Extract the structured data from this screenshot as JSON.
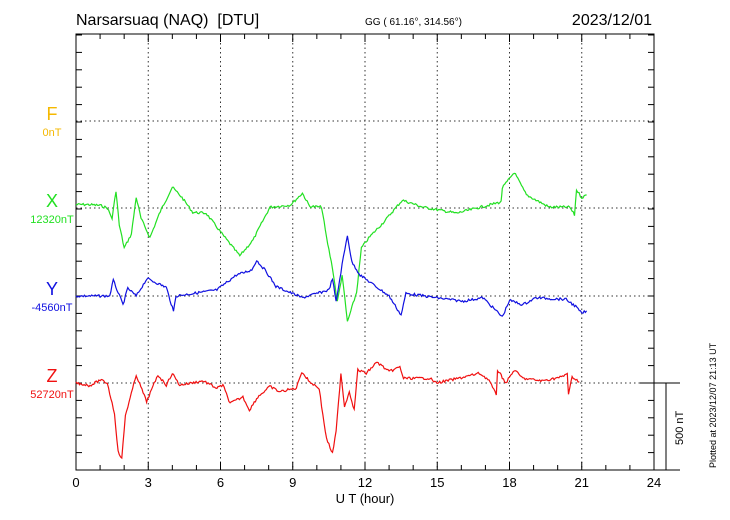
{
  "header": {
    "station": "Narsarsuaq (NAQ)  [DTU]",
    "coords": "GG ( 61.16°, 314.56°)",
    "date": "2023/12/01"
  },
  "footer": {
    "plotted": "Plotted at 2023/12/07 21:13 UT",
    "scale_label": "500 nT"
  },
  "colors": {
    "F": "#f5b800",
    "X": "#22e022",
    "Y": "#1010e0",
    "Z": "#f01010"
  },
  "chart_data": {
    "type": "line",
    "title": "Narsarsuaq (NAQ) [DTU] 2023/12/01",
    "xlabel": "U T (hour)",
    "xlim": [
      0,
      24
    ],
    "xticks": [
      "0",
      "3",
      "6",
      "9",
      "12",
      "15",
      "18",
      "21",
      "24"
    ],
    "grid": true,
    "scale_bar_nT": 500,
    "series": [
      {
        "name": "F",
        "baseline_label": "0nT",
        "points": []
      },
      {
        "name": "X",
        "baseline_label": "12320nT",
        "points": [
          [
            0,
            20
          ],
          [
            0.5,
            20
          ],
          [
            1.0,
            15
          ],
          [
            1.3,
            0
          ],
          [
            1.5,
            -60
          ],
          [
            1.66,
            100
          ],
          [
            1.8,
            -100
          ],
          [
            2.0,
            -230
          ],
          [
            2.3,
            -150
          ],
          [
            2.5,
            63
          ],
          [
            2.7,
            -60
          ],
          [
            3.07,
            -170
          ],
          [
            3.5,
            -20
          ],
          [
            4.0,
            120
          ],
          [
            4.4,
            60
          ],
          [
            4.85,
            -25
          ],
          [
            5.4,
            -30
          ],
          [
            6.1,
            -155
          ],
          [
            6.8,
            -275
          ],
          [
            7.35,
            -185
          ],
          [
            8.05,
            5
          ],
          [
            8.9,
            17
          ],
          [
            9.4,
            85
          ],
          [
            9.7,
            10
          ],
          [
            10.2,
            5
          ],
          [
            10.4,
            -170
          ],
          [
            10.65,
            -345
          ],
          [
            10.85,
            -540
          ],
          [
            11.05,
            -385
          ],
          [
            11.27,
            -655
          ],
          [
            11.65,
            -485
          ],
          [
            11.85,
            -230
          ],
          [
            12.2,
            -165
          ],
          [
            12.75,
            -85
          ],
          [
            13.3,
            5
          ],
          [
            13.55,
            45
          ],
          [
            14.4,
            5
          ],
          [
            15.8,
            -30
          ],
          [
            17.15,
            17
          ],
          [
            17.65,
            35
          ],
          [
            17.7,
            115
          ],
          [
            18.2,
            205
          ],
          [
            18.7,
            75
          ],
          [
            19.65,
            5
          ],
          [
            20.5,
            5
          ],
          [
            20.7,
            -40
          ],
          [
            20.78,
            105
          ],
          [
            21.0,
            60
          ],
          [
            21.2,
            75
          ]
        ]
      },
      {
        "name": "Y",
        "baseline_label": "-4560nT",
        "points": [
          [
            0,
            0
          ],
          [
            1.4,
            0
          ],
          [
            1.55,
            90
          ],
          [
            1.95,
            -50
          ],
          [
            2.15,
            45
          ],
          [
            2.5,
            0
          ],
          [
            2.95,
            100
          ],
          [
            3.75,
            50
          ],
          [
            4.05,
            -90
          ],
          [
            4.15,
            0
          ],
          [
            5.85,
            35
          ],
          [
            6.65,
            120
          ],
          [
            7.3,
            150
          ],
          [
            7.5,
            205
          ],
          [
            7.9,
            140
          ],
          [
            8.3,
            55
          ],
          [
            9.4,
            -10
          ],
          [
            10.5,
            35
          ],
          [
            10.65,
            100
          ],
          [
            10.8,
            -35
          ],
          [
            11.05,
            180
          ],
          [
            11.27,
            350
          ],
          [
            11.45,
            195
          ],
          [
            11.8,
            120
          ],
          [
            12.5,
            50
          ],
          [
            13.0,
            0
          ],
          [
            13.5,
            -110
          ],
          [
            13.7,
            15
          ],
          [
            14.95,
            -10
          ],
          [
            16.05,
            -30
          ],
          [
            16.9,
            -10
          ],
          [
            17.7,
            -120
          ],
          [
            18.0,
            -25
          ],
          [
            18.55,
            -50
          ],
          [
            19.1,
            -10
          ],
          [
            20.35,
            -20
          ],
          [
            20.75,
            -60
          ],
          [
            21.0,
            -100
          ],
          [
            21.2,
            -85
          ]
        ]
      },
      {
        "name": "Z",
        "baseline_label": "52720nT",
        "points": [
          [
            0,
            0
          ],
          [
            0.58,
            -15
          ],
          [
            1.0,
            17
          ],
          [
            1.3,
            0
          ],
          [
            1.6,
            -175
          ],
          [
            1.75,
            -395
          ],
          [
            1.9,
            -435
          ],
          [
            2.05,
            -185
          ],
          [
            2.3,
            -60
          ],
          [
            2.5,
            46
          ],
          [
            2.93,
            -107
          ],
          [
            3.4,
            46
          ],
          [
            3.75,
            -12
          ],
          [
            4.0,
            56
          ],
          [
            4.3,
            -12
          ],
          [
            5.28,
            12
          ],
          [
            5.85,
            -30
          ],
          [
            6.1,
            -12
          ],
          [
            6.4,
            -117
          ],
          [
            6.93,
            -80
          ],
          [
            7.2,
            -155
          ],
          [
            7.55,
            -80
          ],
          [
            8.05,
            -20
          ],
          [
            8.45,
            -50
          ],
          [
            9.15,
            -30
          ],
          [
            9.37,
            65
          ],
          [
            9.7,
            7
          ],
          [
            10.1,
            -30
          ],
          [
            10.25,
            -185
          ],
          [
            10.4,
            -320
          ],
          [
            10.65,
            -405
          ],
          [
            10.8,
            -280
          ],
          [
            11.0,
            56
          ],
          [
            11.15,
            -135
          ],
          [
            11.35,
            -50
          ],
          [
            11.55,
            -155
          ],
          [
            11.7,
            75
          ],
          [
            12.05,
            56
          ],
          [
            12.5,
            120
          ],
          [
            13.0,
            65
          ],
          [
            13.45,
            92
          ],
          [
            13.6,
            27
          ],
          [
            14.7,
            27
          ],
          [
            14.95,
            0
          ],
          [
            15.9,
            27
          ],
          [
            16.75,
            56
          ],
          [
            17.15,
            17
          ],
          [
            17.45,
            -70
          ],
          [
            17.5,
            75
          ],
          [
            17.85,
            0
          ],
          [
            18.2,
            75
          ],
          [
            18.55,
            27
          ],
          [
            19.35,
            12
          ],
          [
            20.2,
            36
          ],
          [
            20.4,
            56
          ],
          [
            20.45,
            -70
          ],
          [
            20.6,
            36
          ],
          [
            20.9,
            7
          ]
        ]
      }
    ]
  }
}
